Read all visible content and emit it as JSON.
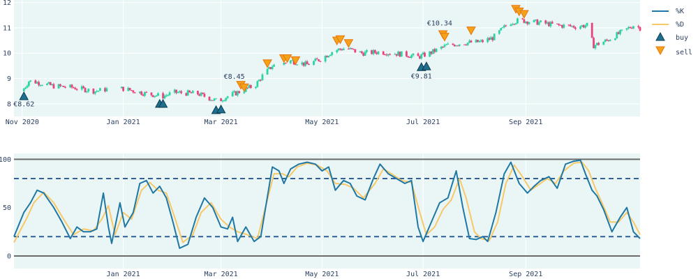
{
  "colors": {
    "bg": "#eaf6f6",
    "up": "#2bd4a5",
    "down": "#e8447a",
    "k": "#1f77a4",
    "d": "#f7c868",
    "buy": "#1f6f8f",
    "sell": "#f3a21a",
    "dash": "#2e5f96",
    "level": "#6b6b6b",
    "grid": "#ffffff"
  },
  "legend": {
    "k": "%K",
    "d": "%D",
    "buy": "buy",
    "sell": "sell"
  },
  "chart_data": [
    {
      "type": "candlestick",
      "x_range": [
        "2020-10-27",
        "2021-11-09"
      ],
      "ylim": [
        7.5,
        12.1
      ],
      "y_ticks": [
        8,
        9,
        10,
        11,
        12
      ],
      "x_ticks": [
        {
          "date": "2020-11-01",
          "label": "Nov 2020"
        },
        {
          "date": "2021-01-01",
          "label": "Jan 2021"
        },
        {
          "date": "2021-03-01",
          "label": "Mar 2021"
        },
        {
          "date": "2021-05-01",
          "label": "May 2021"
        },
        {
          "date": "2021-07-01",
          "label": "Jul 2021"
        },
        {
          "date": "2021-09-01",
          "label": "Sep 2021"
        }
      ],
      "close_path": [
        [
          "2020-11-01",
          8.5
        ],
        [
          "2020-11-05",
          8.9
        ],
        [
          "2020-11-10",
          8.85
        ],
        [
          "2020-11-20",
          8.7
        ],
        [
          "2020-12-01",
          8.65
        ],
        [
          "2020-12-15",
          8.5
        ],
        [
          "2020-12-24",
          8.6
        ],
        [
          "2021-01-01",
          8.6
        ],
        [
          "2021-01-15",
          8.4
        ],
        [
          "2021-01-25",
          8.3
        ],
        [
          "2021-02-01",
          8.45
        ],
        [
          "2021-02-15",
          8.4
        ],
        [
          "2021-02-27",
          8.1
        ],
        [
          "2021-03-05",
          8.3
        ],
        [
          "2021-03-15",
          8.55
        ],
        [
          "2021-03-22",
          8.75
        ],
        [
          "2021-03-26",
          9.1
        ],
        [
          "2021-04-01",
          9.5
        ],
        [
          "2021-04-12",
          9.7
        ],
        [
          "2021-04-22",
          9.55
        ],
        [
          "2021-05-01",
          9.8
        ],
        [
          "2021-05-08",
          10.1
        ],
        [
          "2021-05-15",
          10.2
        ],
        [
          "2021-05-25",
          10.0
        ],
        [
          "2021-06-05",
          10.05
        ],
        [
          "2021-06-20",
          9.95
        ],
        [
          "2021-06-28",
          9.85
        ],
        [
          "2021-07-05",
          10.0
        ],
        [
          "2021-07-15",
          10.3
        ],
        [
          "2021-07-25",
          10.4
        ],
        [
          "2021-08-05",
          10.45
        ],
        [
          "2021-08-12",
          10.6
        ],
        [
          "2021-08-22",
          11.2
        ],
        [
          "2021-08-28",
          11.3
        ],
        [
          "2021-09-10",
          11.2
        ],
        [
          "2021-09-20",
          11.1
        ],
        [
          "2021-10-01",
          11.05
        ],
        [
          "2021-10-08",
          11.1
        ],
        [
          "2021-10-12",
          10.3
        ],
        [
          "2021-10-20",
          10.5
        ],
        [
          "2021-10-28",
          10.8
        ],
        [
          "2021-11-05",
          11.1
        ],
        [
          "2021-11-09",
          11.0
        ]
      ],
      "gaps": [
        [
          "2020-12-23",
          "2020-12-30"
        ],
        [
          "2021-04-04",
          "2021-04-07"
        ]
      ],
      "buy_markers": [
        [
          "2020-11-02",
          8.3
        ],
        [
          "2021-01-23",
          8.0
        ],
        [
          "2021-01-25",
          8.0
        ],
        [
          "2021-02-26",
          7.75
        ],
        [
          "2021-03-01",
          7.78
        ],
        [
          "2021-06-30",
          9.45
        ],
        [
          "2021-07-03",
          9.48
        ]
      ],
      "sell_markers": [
        [
          "2021-03-13",
          8.75
        ],
        [
          "2021-03-15",
          8.65
        ],
        [
          "2021-03-29",
          9.6
        ],
        [
          "2021-04-08",
          9.8
        ],
        [
          "2021-04-10",
          9.8
        ],
        [
          "2021-04-15",
          9.72
        ],
        [
          "2021-05-10",
          10.5
        ],
        [
          "2021-05-12",
          10.55
        ],
        [
          "2021-05-17",
          10.4
        ],
        [
          "2021-07-13",
          10.75
        ],
        [
          "2021-07-14",
          10.65
        ],
        [
          "2021-07-30",
          10.9
        ],
        [
          "2021-08-26",
          11.75
        ],
        [
          "2021-08-28",
          11.65
        ],
        [
          "2021-08-31",
          11.55
        ]
      ],
      "annotations": [
        {
          "date": "2020-11-02",
          "y": 7.9,
          "text": "€8.62"
        },
        {
          "date": "2021-03-09",
          "y": 8.99,
          "text": "€8.45"
        },
        {
          "date": "2021-06-30",
          "y": 9.0,
          "text": "€9.81"
        },
        {
          "date": "2021-07-11",
          "y": 11.1,
          "text": "€10.34"
        }
      ]
    },
    {
      "type": "line",
      "x_range": [
        "2020-10-27",
        "2021-11-09"
      ],
      "ylim": [
        -13,
        106
      ],
      "y_ticks": [
        0,
        50,
        100
      ],
      "x_ticks": [
        {
          "date": "2021-01-01",
          "label": "Jan 2021"
        },
        {
          "date": "2021-03-01",
          "label": "Mar 2021"
        },
        {
          "date": "2021-05-01",
          "label": "May 2021"
        },
        {
          "date": "2021-07-01",
          "label": "Jul 2021"
        },
        {
          "date": "2021-09-01",
          "label": "Sep 2021"
        }
      ],
      "reference_lines": [
        20,
        80
      ],
      "level_lines": [
        0,
        100
      ],
      "series": [
        {
          "name": "%K",
          "points": [
            [
              "2020-10-27",
              20
            ],
            [
              "2020-11-02",
              45
            ],
            [
              "2020-11-06",
              55
            ],
            [
              "2020-11-10",
              68
            ],
            [
              "2020-11-14",
              65
            ],
            [
              "2020-11-20",
              50
            ],
            [
              "2020-11-25",
              35
            ],
            [
              "2020-11-30",
              18
            ],
            [
              "2020-12-04",
              30
            ],
            [
              "2020-12-08",
              25
            ],
            [
              "2020-12-12",
              25
            ],
            [
              "2020-12-16",
              28
            ],
            [
              "2020-12-20",
              65
            ],
            [
              "2020-12-23",
              30
            ],
            [
              "2020-12-25",
              13
            ],
            [
              "2020-12-30",
              55
            ],
            [
              "2021-01-02",
              30
            ],
            [
              "2021-01-07",
              45
            ],
            [
              "2021-01-11",
              75
            ],
            [
              "2021-01-15",
              78
            ],
            [
              "2021-01-19",
              65
            ],
            [
              "2021-01-23",
              72
            ],
            [
              "2021-01-27",
              60
            ],
            [
              "2021-01-31",
              35
            ],
            [
              "2021-02-04",
              8
            ],
            [
              "2021-02-09",
              12
            ],
            [
              "2021-02-14",
              40
            ],
            [
              "2021-02-19",
              60
            ],
            [
              "2021-02-24",
              50
            ],
            [
              "2021-03-01",
              30
            ],
            [
              "2021-03-05",
              28
            ],
            [
              "2021-03-08",
              40
            ],
            [
              "2021-03-11",
              15
            ],
            [
              "2021-03-16",
              30
            ],
            [
              "2021-03-21",
              15
            ],
            [
              "2021-03-25",
              20
            ],
            [
              "2021-04-01",
              92
            ],
            [
              "2021-04-05",
              88
            ],
            [
              "2021-04-08",
              75
            ],
            [
              "2021-04-12",
              90
            ],
            [
              "2021-04-17",
              95
            ],
            [
              "2021-04-22",
              97
            ],
            [
              "2021-04-27",
              95
            ],
            [
              "2021-05-01",
              88
            ],
            [
              "2021-05-05",
              92
            ],
            [
              "2021-05-09",
              68
            ],
            [
              "2021-05-14",
              78
            ],
            [
              "2021-05-18",
              75
            ],
            [
              "2021-05-22",
              62
            ],
            [
              "2021-05-27",
              58
            ],
            [
              "2021-06-01",
              80
            ],
            [
              "2021-06-05",
              95
            ],
            [
              "2021-06-10",
              85
            ],
            [
              "2021-06-15",
              80
            ],
            [
              "2021-06-20",
              75
            ],
            [
              "2021-06-24",
              78
            ],
            [
              "2021-06-28",
              30
            ],
            [
              "2021-07-01",
              15
            ],
            [
              "2021-07-06",
              35
            ],
            [
              "2021-07-11",
              55
            ],
            [
              "2021-07-16",
              60
            ],
            [
              "2021-07-21",
              88
            ],
            [
              "2021-07-25",
              50
            ],
            [
              "2021-07-29",
              18
            ],
            [
              "2021-08-02",
              17
            ],
            [
              "2021-08-06",
              20
            ],
            [
              "2021-08-09",
              15
            ],
            [
              "2021-08-14",
              45
            ],
            [
              "2021-08-19",
              85
            ],
            [
              "2021-08-23",
              97
            ],
            [
              "2021-08-28",
              75
            ],
            [
              "2021-09-02",
              65
            ],
            [
              "2021-09-06",
              72
            ],
            [
              "2021-09-10",
              78
            ],
            [
              "2021-09-15",
              82
            ],
            [
              "2021-09-20",
              70
            ],
            [
              "2021-09-25",
              95
            ],
            [
              "2021-09-30",
              98
            ],
            [
              "2021-10-04",
              99
            ],
            [
              "2021-10-07",
              85
            ],
            [
              "2021-10-11",
              68
            ],
            [
              "2021-10-14",
              62
            ],
            [
              "2021-10-18",
              48
            ],
            [
              "2021-10-23",
              25
            ],
            [
              "2021-10-28",
              40
            ],
            [
              "2021-11-01",
              50
            ],
            [
              "2021-11-05",
              25
            ],
            [
              "2021-11-09",
              18
            ]
          ]
        },
        {
          "name": "%D",
          "points": [
            [
              "2020-10-27",
              14
            ],
            [
              "2020-11-04",
              40
            ],
            [
              "2020-11-08",
              55
            ],
            [
              "2020-11-14",
              66
            ],
            [
              "2020-11-20",
              55
            ],
            [
              "2020-11-26",
              38
            ],
            [
              "2020-12-02",
              22
            ],
            [
              "2020-12-08",
              28
            ],
            [
              "2020-12-14",
              26
            ],
            [
              "2020-12-19",
              38
            ],
            [
              "2020-12-23",
              52
            ],
            [
              "2020-12-27",
              22
            ],
            [
              "2021-01-01",
              45
            ],
            [
              "2021-01-06",
              38
            ],
            [
              "2021-01-12",
              68
            ],
            [
              "2021-01-17",
              76
            ],
            [
              "2021-01-22",
              68
            ],
            [
              "2021-01-27",
              65
            ],
            [
              "2021-02-01",
              40
            ],
            [
              "2021-02-06",
              14
            ],
            [
              "2021-02-12",
              22
            ],
            [
              "2021-02-17",
              45
            ],
            [
              "2021-02-23",
              55
            ],
            [
              "2021-03-01",
              38
            ],
            [
              "2021-03-06",
              30
            ],
            [
              "2021-03-11",
              25
            ],
            [
              "2021-03-17",
              22
            ],
            [
              "2021-03-23",
              18
            ],
            [
              "2021-04-02",
              85
            ],
            [
              "2021-04-07",
              85
            ],
            [
              "2021-04-11",
              82
            ],
            [
              "2021-04-16",
              92
            ],
            [
              "2021-04-22",
              96
            ],
            [
              "2021-04-28",
              94
            ],
            [
              "2021-05-04",
              88
            ],
            [
              "2021-05-09",
              75
            ],
            [
              "2021-05-15",
              74
            ],
            [
              "2021-05-20",
              70
            ],
            [
              "2021-05-26",
              60
            ],
            [
              "2021-06-02",
              75
            ],
            [
              "2021-06-07",
              90
            ],
            [
              "2021-06-12",
              85
            ],
            [
              "2021-06-18",
              78
            ],
            [
              "2021-06-24",
              76
            ],
            [
              "2021-06-29",
              45
            ],
            [
              "2021-07-03",
              22
            ],
            [
              "2021-07-08",
              30
            ],
            [
              "2021-07-13",
              48
            ],
            [
              "2021-07-18",
              58
            ],
            [
              "2021-07-23",
              80
            ],
            [
              "2021-07-27",
              60
            ],
            [
              "2021-08-01",
              25
            ],
            [
              "2021-08-05",
              18
            ],
            [
              "2021-08-10",
              16
            ],
            [
              "2021-08-15",
              35
            ],
            [
              "2021-08-20",
              75
            ],
            [
              "2021-08-25",
              94
            ],
            [
              "2021-08-30",
              82
            ],
            [
              "2021-09-04",
              68
            ],
            [
              "2021-09-09",
              74
            ],
            [
              "2021-09-14",
              80
            ],
            [
              "2021-09-19",
              75
            ],
            [
              "2021-09-24",
              88
            ],
            [
              "2021-09-30",
              96
            ],
            [
              "2021-10-05",
              97
            ],
            [
              "2021-10-09",
              88
            ],
            [
              "2021-10-13",
              70
            ],
            [
              "2021-10-17",
              55
            ],
            [
              "2021-10-22",
              35
            ],
            [
              "2021-10-27",
              35
            ],
            [
              "2021-11-01",
              45
            ],
            [
              "2021-11-05",
              35
            ],
            [
              "2021-11-09",
              22
            ]
          ]
        }
      ]
    }
  ]
}
